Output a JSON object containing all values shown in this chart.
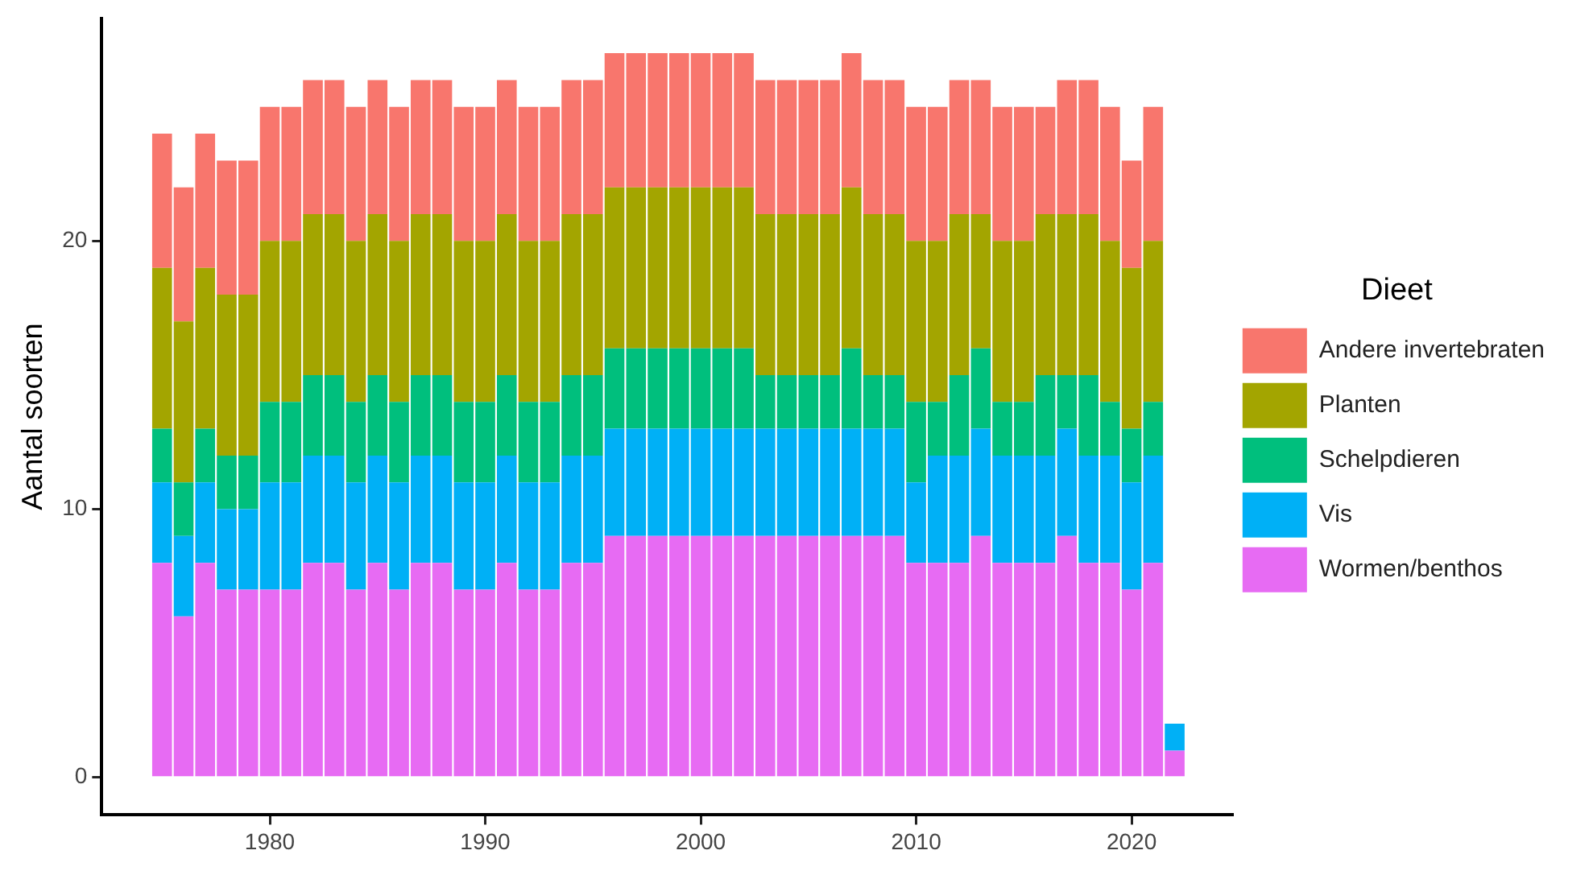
{
  "chart_data": {
    "type": "bar",
    "stacked": true,
    "ylabel": "Aantal soorten",
    "legend_title": "Dieet",
    "legend": "right",
    "x": [
      1975,
      1976,
      1977,
      1978,
      1979,
      1980,
      1981,
      1982,
      1983,
      1984,
      1985,
      1986,
      1987,
      1988,
      1989,
      1990,
      1991,
      1992,
      1993,
      1994,
      1995,
      1996,
      1997,
      1998,
      1999,
      2000,
      2001,
      2002,
      2003,
      2004,
      2005,
      2006,
      2007,
      2008,
      2009,
      2010,
      2011,
      2012,
      2013,
      2014,
      2015,
      2016,
      2017,
      2018,
      2019,
      2020,
      2021,
      2022
    ],
    "xlim": [
      1972.2,
      2024.7
    ],
    "xticks": [
      1980,
      1990,
      2000,
      2010,
      2020
    ],
    "ylim": [
      -1.4,
      28.3
    ],
    "yticks": [
      0,
      10,
      20
    ],
    "series": [
      {
        "name": "Wormen/benthos",
        "color": "#e76bf3",
        "values": [
          8,
          6,
          8,
          7,
          7,
          7,
          7,
          8,
          8,
          7,
          8,
          7,
          8,
          8,
          7,
          7,
          8,
          7,
          7,
          8,
          8,
          9,
          9,
          9,
          9,
          9,
          9,
          9,
          9,
          9,
          9,
          9,
          9,
          9,
          9,
          8,
          8,
          8,
          9,
          8,
          8,
          8,
          9,
          8,
          8,
          7,
          8,
          1
        ]
      },
      {
        "name": "Vis",
        "color": "#00b0f6",
        "values": [
          3,
          3,
          3,
          3,
          3,
          4,
          4,
          4,
          4,
          4,
          4,
          4,
          4,
          4,
          4,
          4,
          4,
          4,
          4,
          4,
          4,
          4,
          4,
          4,
          4,
          4,
          4,
          4,
          4,
          4,
          4,
          4,
          4,
          4,
          4,
          3,
          4,
          4,
          4,
          4,
          4,
          4,
          4,
          4,
          4,
          4,
          4,
          1
        ]
      },
      {
        "name": "Schelpdieren",
        "color": "#00bf7d",
        "values": [
          2,
          2,
          2,
          2,
          2,
          3,
          3,
          3,
          3,
          3,
          3,
          3,
          3,
          3,
          3,
          3,
          3,
          3,
          3,
          3,
          3,
          3,
          3,
          3,
          3,
          3,
          3,
          3,
          2,
          2,
          2,
          2,
          3,
          2,
          2,
          3,
          2,
          3,
          3,
          2,
          2,
          3,
          2,
          3,
          2,
          2,
          2,
          null
        ]
      },
      {
        "name": "Planten",
        "color": "#a3a500",
        "values": [
          6,
          6,
          6,
          6,
          6,
          6,
          6,
          6,
          6,
          6,
          6,
          6,
          6,
          6,
          6,
          6,
          6,
          6,
          6,
          6,
          6,
          6,
          6,
          6,
          6,
          6,
          6,
          6,
          6,
          6,
          6,
          6,
          6,
          6,
          6,
          6,
          6,
          6,
          5,
          6,
          6,
          6,
          6,
          6,
          6,
          6,
          6,
          null
        ]
      },
      {
        "name": "Andere invertebraten",
        "color": "#f8766d",
        "values": [
          5,
          5,
          5,
          5,
          5,
          5,
          5,
          5,
          5,
          5,
          5,
          5,
          5,
          5,
          5,
          5,
          5,
          5,
          5,
          5,
          5,
          5,
          5,
          5,
          5,
          5,
          5,
          5,
          5,
          5,
          5,
          5,
          5,
          5,
          5,
          5,
          5,
          5,
          5,
          5,
          5,
          4,
          5,
          5,
          5,
          4,
          5,
          null
        ]
      }
    ]
  }
}
